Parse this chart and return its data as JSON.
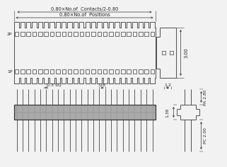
{
  "bg_color": "#f2f2f2",
  "line_color": "#333333",
  "dim_color": "#333333",
  "text_color": "#222222",
  "n_pins": 24,
  "annotations": {
    "dim1": "0.80×No.of  Positions",
    "dim2": "0.80×No.of  Contacts/2-0.80",
    "dim3": "3.00",
    "dim4": "0.3 SQ",
    "dim5": "0.8",
    "dim6": "1.2",
    "dim7": "PA 2.80",
    "dim8": "1.38",
    "dim9": "PC 2.00",
    "label_2p": "2P",
    "label_1p": "1P"
  }
}
